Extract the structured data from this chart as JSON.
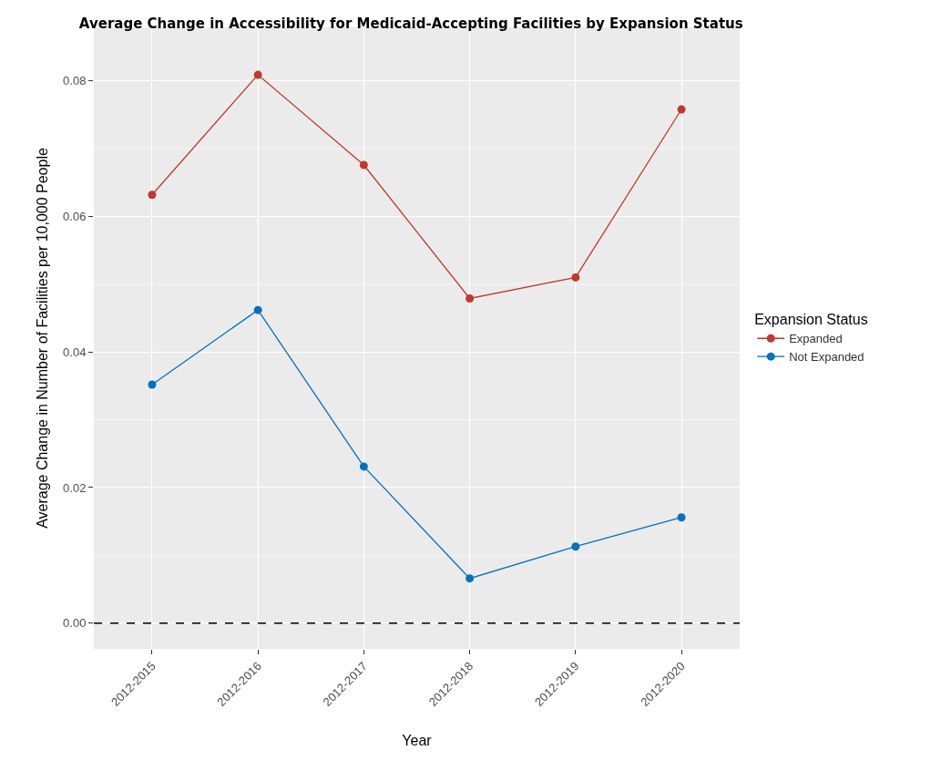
{
  "chart_data": {
    "type": "line",
    "title": "Average Change in Accessibility for Medicaid-Accepting Facilities by Expansion Status",
    "xlabel": "Year",
    "ylabel": "Average Change in Number of Facilities per 10,000 People",
    "legend_title": "Expansion Status",
    "categories": [
      "2012-2015",
      "2012-2016",
      "2012-2017",
      "2012-2018",
      "2012-2019",
      "2012-2020"
    ],
    "series": [
      {
        "name": "Expanded",
        "color": "#c0392b",
        "values": [
          0.0632,
          0.0809,
          0.0676,
          0.0479,
          0.051,
          0.0758
        ]
      },
      {
        "name": "Not Expanded",
        "color": "#0072bd",
        "values": [
          0.0352,
          0.0462,
          0.0231,
          0.0066,
          0.0113,
          0.0156
        ]
      }
    ],
    "ylim": [
      -0.0038,
      0.0879
    ],
    "yticks": [
      {
        "value": 0,
        "label": "0.00"
      },
      {
        "value": 0.02,
        "label": "0.02"
      },
      {
        "value": 0.04,
        "label": "0.04"
      },
      {
        "value": 0.06,
        "label": "0.06"
      },
      {
        "value": 0.08,
        "label": "0.08"
      }
    ],
    "ref_lines": [
      {
        "axis": "y",
        "value": 0,
        "color": "#000000",
        "line_style": "dashed"
      }
    ],
    "grid": true,
    "legend": "right",
    "marker": "circle",
    "line_style": "solid"
  }
}
